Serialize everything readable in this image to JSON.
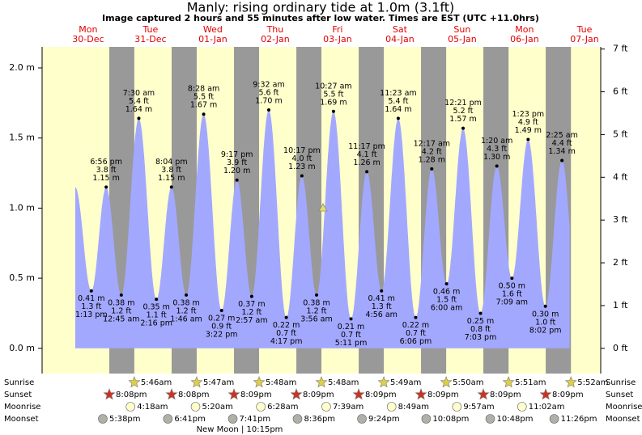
{
  "chart_data": {
    "type": "tide",
    "title": "Manly: rising  ordinary tide at 1.0m (3.1ft)",
    "subtitle": "Image captured 2 hours and 55 minutes after low water. Times are EST (UTC +11.0hrs)",
    "ylim": [
      -0.18,
      2.15
    ],
    "yticks": [
      {
        "value": 0,
        "label": "0.0 m"
      },
      {
        "value": 0.5,
        "label": "0.5 m"
      },
      {
        "value": 1,
        "label": "1.0 m"
      },
      {
        "value": 1.5,
        "label": "1.5 m"
      },
      {
        "value": 2,
        "label": "2.0 m"
      }
    ],
    "y2lim": [
      -0.59,
      7.05
    ],
    "y2ticks": [
      {
        "value": 0,
        "label": "0 ft"
      },
      {
        "value": 1,
        "label": "1 ft"
      },
      {
        "value": 2,
        "label": "2 ft"
      },
      {
        "value": 3,
        "label": "3 ft"
      },
      {
        "value": 4,
        "label": "4 ft"
      },
      {
        "value": 5,
        "label": "5 ft"
      },
      {
        "value": 6,
        "label": "6 ft"
      },
      {
        "value": 7,
        "label": "7 ft"
      }
    ],
    "row_labels": {
      "sunrise": "Sunrise",
      "sunset": "Sunset",
      "moonrise": "Moonrise",
      "moonset": "Moonset"
    },
    "moon_phase": "New Moon | 10:15pm",
    "colors": {
      "day": "#ffffcc",
      "night": "#999999",
      "water": "#a3a8ff"
    },
    "days": [
      {
        "name": "Mon",
        "date": "30-Dec",
        "sunset": "8:08pm",
        "moonset": "5:38pm",
        "tides": [
          {
            "time": "1:13 pm",
            "ft": "1.3 ft",
            "height": 0.41,
            "height_label": "0.41 m"
          },
          {
            "time": "6:56 pm",
            "ft": "3.8 ft",
            "height": 1.15,
            "height_label": "1.15 m"
          }
        ]
      },
      {
        "name": "Tue",
        "date": "31-Dec",
        "sunrise": "5:46am",
        "sunset": "8:08pm",
        "moonrise": "4:18am",
        "moonset": "6:41pm",
        "tides": [
          {
            "time": "12:45 am",
            "ft": "1.2 ft",
            "height": 0.38,
            "height_label": "0.38 m"
          },
          {
            "time": "7:30 am",
            "ft": "5.4 ft",
            "height": 1.64,
            "height_label": "1.64 m"
          },
          {
            "time": "2:16 pm",
            "ft": "1.1 ft",
            "height": 0.35,
            "height_label": "0.35 m"
          },
          {
            "time": "8:04 pm",
            "ft": "3.8 ft",
            "height": 1.15,
            "height_label": "1.15 m"
          }
        ]
      },
      {
        "name": "Wed",
        "date": "01-Jan",
        "sunrise": "5:47am",
        "sunset": "8:09pm",
        "moonrise": "5:20am",
        "moonset": "7:41pm",
        "tides": [
          {
            "time": "1:46 am",
            "ft": "1.2 ft",
            "height": 0.38,
            "height_label": "0.38 m"
          },
          {
            "time": "8:28 am",
            "ft": "5.5 ft",
            "height": 1.67,
            "height_label": "1.67 m"
          },
          {
            "time": "3:22 pm",
            "ft": "0.9 ft",
            "height": 0.27,
            "height_label": "0.27 m"
          },
          {
            "time": "9:17 pm",
            "ft": "3.9 ft",
            "height": 1.2,
            "height_label": "1.20 m"
          }
        ]
      },
      {
        "name": "Thu",
        "date": "02-Jan",
        "sunrise": "5:48am",
        "sunset": "8:09pm",
        "moonrise": "6:28am",
        "moonset": "8:36pm",
        "tides": [
          {
            "time": "2:57 am",
            "ft": "1.2 ft",
            "height": 0.37,
            "height_label": "0.37 m"
          },
          {
            "time": "9:32 am",
            "ft": "5.6 ft",
            "height": 1.7,
            "height_label": "1.70 m"
          },
          {
            "time": "4:17 pm",
            "ft": "0.7 ft",
            "height": 0.22,
            "height_label": "0.22 m"
          },
          {
            "time": "10:17 pm",
            "ft": "4.0 ft",
            "height": 1.23,
            "height_label": "1.23 m"
          }
        ]
      },
      {
        "name": "Fri",
        "date": "03-Jan",
        "sunrise": "5:48am",
        "sunset": "8:09pm",
        "moonrise": "7:39am",
        "moonset": "9:24pm",
        "tides": [
          {
            "time": "3:56 am",
            "ft": "1.2 ft",
            "height": 0.38,
            "height_label": "0.38 m"
          },
          {
            "time": "10:27 am",
            "ft": "5.5 ft",
            "height": 1.69,
            "height_label": "1.69 m"
          },
          {
            "time": "5:11 pm",
            "ft": "0.7 ft",
            "height": 0.21,
            "height_label": "0.21 m"
          },
          {
            "time": "11:17 pm",
            "ft": "4.1 ft",
            "height": 1.26,
            "height_label": "1.26 m"
          }
        ]
      },
      {
        "name": "Sat",
        "date": "04-Jan",
        "sunrise": "5:49am",
        "sunset": "8:09pm",
        "moonrise": "8:49am",
        "moonset": "10:08pm",
        "tides": [
          {
            "time": "4:56 am",
            "ft": "1.3 ft",
            "height": 0.41,
            "height_label": "0.41 m"
          },
          {
            "time": "11:23 am",
            "ft": "5.4 ft",
            "height": 1.64,
            "height_label": "1.64 m"
          },
          {
            "time": "6:06 pm",
            "ft": "0.7 ft",
            "height": 0.22,
            "height_label": "0.22 m"
          }
        ]
      },
      {
        "name": "Sun",
        "date": "05-Jan",
        "sunrise": "5:50am",
        "sunset": "8:09pm",
        "moonrise": "9:57am",
        "moonset": "10:48pm",
        "tides": [
          {
            "time": "12:17 am",
            "ft": "4.2 ft",
            "height": 1.28,
            "height_label": "1.28 m"
          },
          {
            "time": "6:00 am",
            "ft": "1.5 ft",
            "height": 0.46,
            "height_label": "0.46 m"
          },
          {
            "time": "12:21 pm",
            "ft": "5.2 ft",
            "height": 1.57,
            "height_label": "1.57 m"
          },
          {
            "time": "7:03 pm",
            "ft": "0.8 ft",
            "height": 0.25,
            "height_label": "0.25 m"
          }
        ]
      },
      {
        "name": "Mon",
        "date": "06-Jan",
        "sunrise": "5:51am",
        "sunset": "8:09pm",
        "moonrise": "11:02am",
        "moonset": "11:26pm",
        "tides": [
          {
            "time": "1:20 am",
            "ft": "4.3 ft",
            "height": 1.3,
            "height_label": "1.30 m"
          },
          {
            "time": "7:09 am",
            "ft": "1.6 ft",
            "height": 0.5,
            "height_label": "0.50 m"
          },
          {
            "time": "1:23 pm",
            "ft": "4.9 ft",
            "height": 1.49,
            "height_label": "1.49 m"
          },
          {
            "time": "8:02 pm",
            "ft": "1.0 ft",
            "height": 0.3,
            "height_label": "0.30 m"
          }
        ]
      },
      {
        "name": "Tue",
        "date": "07-Jan",
        "sunrise": "5:52am",
        "tides": [
          {
            "time": "2:25 am",
            "ft": "4.4 ft",
            "height": 1.34,
            "height_label": "1.34 m"
          }
        ]
      }
    ]
  }
}
